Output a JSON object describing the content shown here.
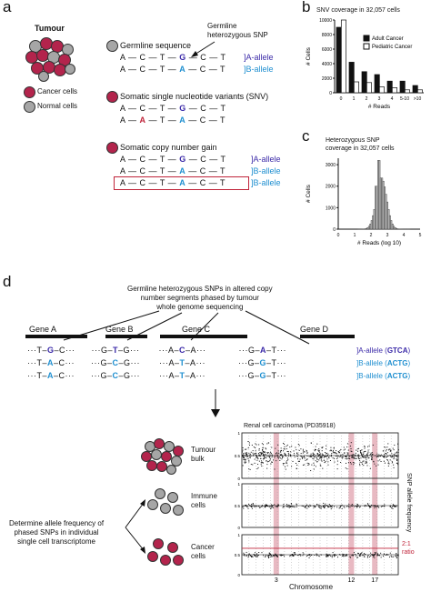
{
  "panel_a": {
    "letter": "a",
    "tumour_label": "Tumour",
    "legend": {
      "cancer": "Cancer cells",
      "normal": "Normal cells"
    },
    "germline_snp_label": "Germline\nheterozygous SNP",
    "rows": [
      {
        "title": "Germline sequence",
        "seqA": "A — C — T — G — C — T",
        "seqB": "A — C — T — A — C — T",
        "tagA": "A-allele",
        "tagB": "B-allele"
      },
      {
        "title": "Somatic single nucleotide variants (SNV)",
        "seqA": "A — C — T — G — C — T",
        "seqB": "A — A — T — A — C — T"
      },
      {
        "title": "Somatic copy number gain",
        "seqA": "A — C — T — G — C — T",
        "seqB": "A — C — T — A — C — T",
        "seqC": "A — C — T — A — C — T",
        "tagA": "A-allele",
        "tagB": "B-allele",
        "tagC": "B-allele"
      }
    ]
  },
  "panel_b": {
    "letter": "b",
    "title": "SNV coverage in 32,057 cells",
    "legend": [
      "Adult Cancer",
      "Pediatric Cancer"
    ],
    "ylabel": "# Cells",
    "xlabel": "# Reads",
    "chart_data": {
      "type": "bar",
      "categories": [
        "0",
        "1",
        "2",
        "3",
        "4",
        "5-10",
        ">10"
      ],
      "series": [
        {
          "name": "Adult Cancer",
          "values": [
            9000,
            4200,
            2900,
            2500,
            1600,
            1600,
            1000
          ]
        },
        {
          "name": "Pediatric Cancer",
          "values": [
            10000,
            1500,
            1400,
            800,
            700,
            400,
            400
          ]
        }
      ],
      "yticks": [
        "0",
        "2000",
        "4000",
        "6000",
        "8000",
        "10000"
      ],
      "ylim": [
        0,
        10000
      ]
    }
  },
  "panel_c": {
    "letter": "c",
    "title": "Heterozygous SNP\ncoverage in 32,057 cells",
    "ylabel": "# Cells",
    "xlabel": "# Reads (log 10)",
    "chart_data": {
      "type": "bar",
      "xticks": [
        "0",
        "1",
        "2",
        "3",
        "4",
        "5"
      ],
      "yticks": [
        "0",
        "1000",
        "2000",
        "3000"
      ],
      "ylim": [
        0,
        3300
      ]
    }
  },
  "panel_d": {
    "letter": "d",
    "callout": "Germline heterozygous SNPs in altered copy\nnumber segments phased by tumour\nwhole genome sequencing",
    "genes": [
      "Gene A",
      "Gene B",
      "Gene C",
      "Gene D"
    ],
    "seqs": [
      [
        "···T–G–C···",
        "···G–T–G···",
        "···A–C–A···",
        "···G–A–T···"
      ],
      [
        "···T–A–C···",
        "···G–C–G···",
        "···A–T–A···",
        "···G–G–T···"
      ],
      [
        "···T–A–C···",
        "···G–C–G···",
        "···A–T–A···",
        "···G–G–T···"
      ]
    ],
    "allele_tags": [
      {
        "tag": "A-allele",
        "code": "GTCA"
      },
      {
        "tag": "B-allele",
        "code": "ACTG"
      },
      {
        "tag": "B-allele",
        "code": "ACTG"
      }
    ],
    "plot_title": "Renal cell carcinoma (PD35918)",
    "groups": [
      "Tumour\nbulk",
      "Immune\ncells",
      "Cancer\ncells"
    ],
    "determine": "Determine allele frequency of\nphased SNPs in individual\nsingle cell transcriptome",
    "ratio": "2:1\nratio",
    "ylabel": "SNP allele frequency",
    "xlabel": "Chromosome",
    "chrom_ticks": [
      "3",
      "12",
      "17"
    ],
    "yticks": [
      "1",
      "0.5",
      "0"
    ]
  },
  "colors": {
    "cancer": "#b3244c",
    "normal": "#a6a6a6",
    "blue": "#1f8fd0",
    "purple": "#3b2aa8",
    "highlight": "#e8b9c2"
  }
}
